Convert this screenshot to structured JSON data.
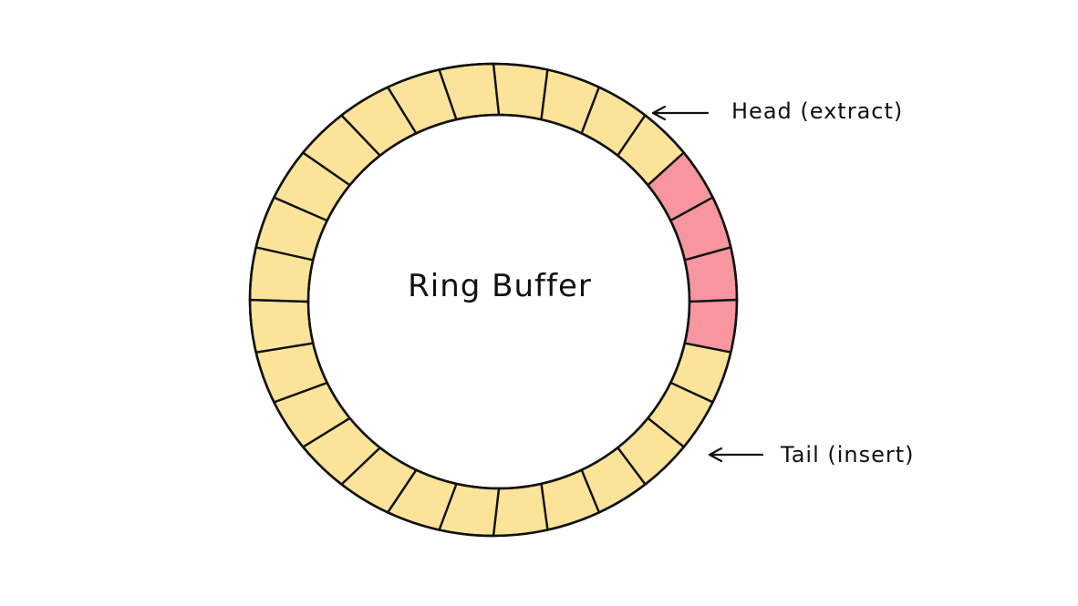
{
  "diagram": {
    "title": "Ring Buffer",
    "head_label": "Head (extract)",
    "tail_label": "Tail (insert)"
  },
  "ring": {
    "slot_count": 28,
    "slots": [
      {
        "state": "empty"
      },
      {
        "state": "empty"
      },
      {
        "state": "empty"
      },
      {
        "state": "empty"
      },
      {
        "state": "filled"
      },
      {
        "state": "filled"
      },
      {
        "state": "filled"
      },
      {
        "state": "filled"
      },
      {
        "state": "empty"
      },
      {
        "state": "empty"
      },
      {
        "state": "empty"
      },
      {
        "state": "empty"
      },
      {
        "state": "empty"
      },
      {
        "state": "empty"
      },
      {
        "state": "empty"
      },
      {
        "state": "empty"
      },
      {
        "state": "empty"
      },
      {
        "state": "empty"
      },
      {
        "state": "empty"
      },
      {
        "state": "empty"
      },
      {
        "state": "empty"
      },
      {
        "state": "empty"
      },
      {
        "state": "empty"
      },
      {
        "state": "empty"
      },
      {
        "state": "empty"
      },
      {
        "state": "empty"
      },
      {
        "state": "empty"
      },
      {
        "state": "empty"
      }
    ]
  },
  "colors": {
    "empty_slot": "#FBE49A",
    "filled_slot": "#F7969E",
    "stroke": "#111111",
    "background": "#FFFFFF"
  }
}
